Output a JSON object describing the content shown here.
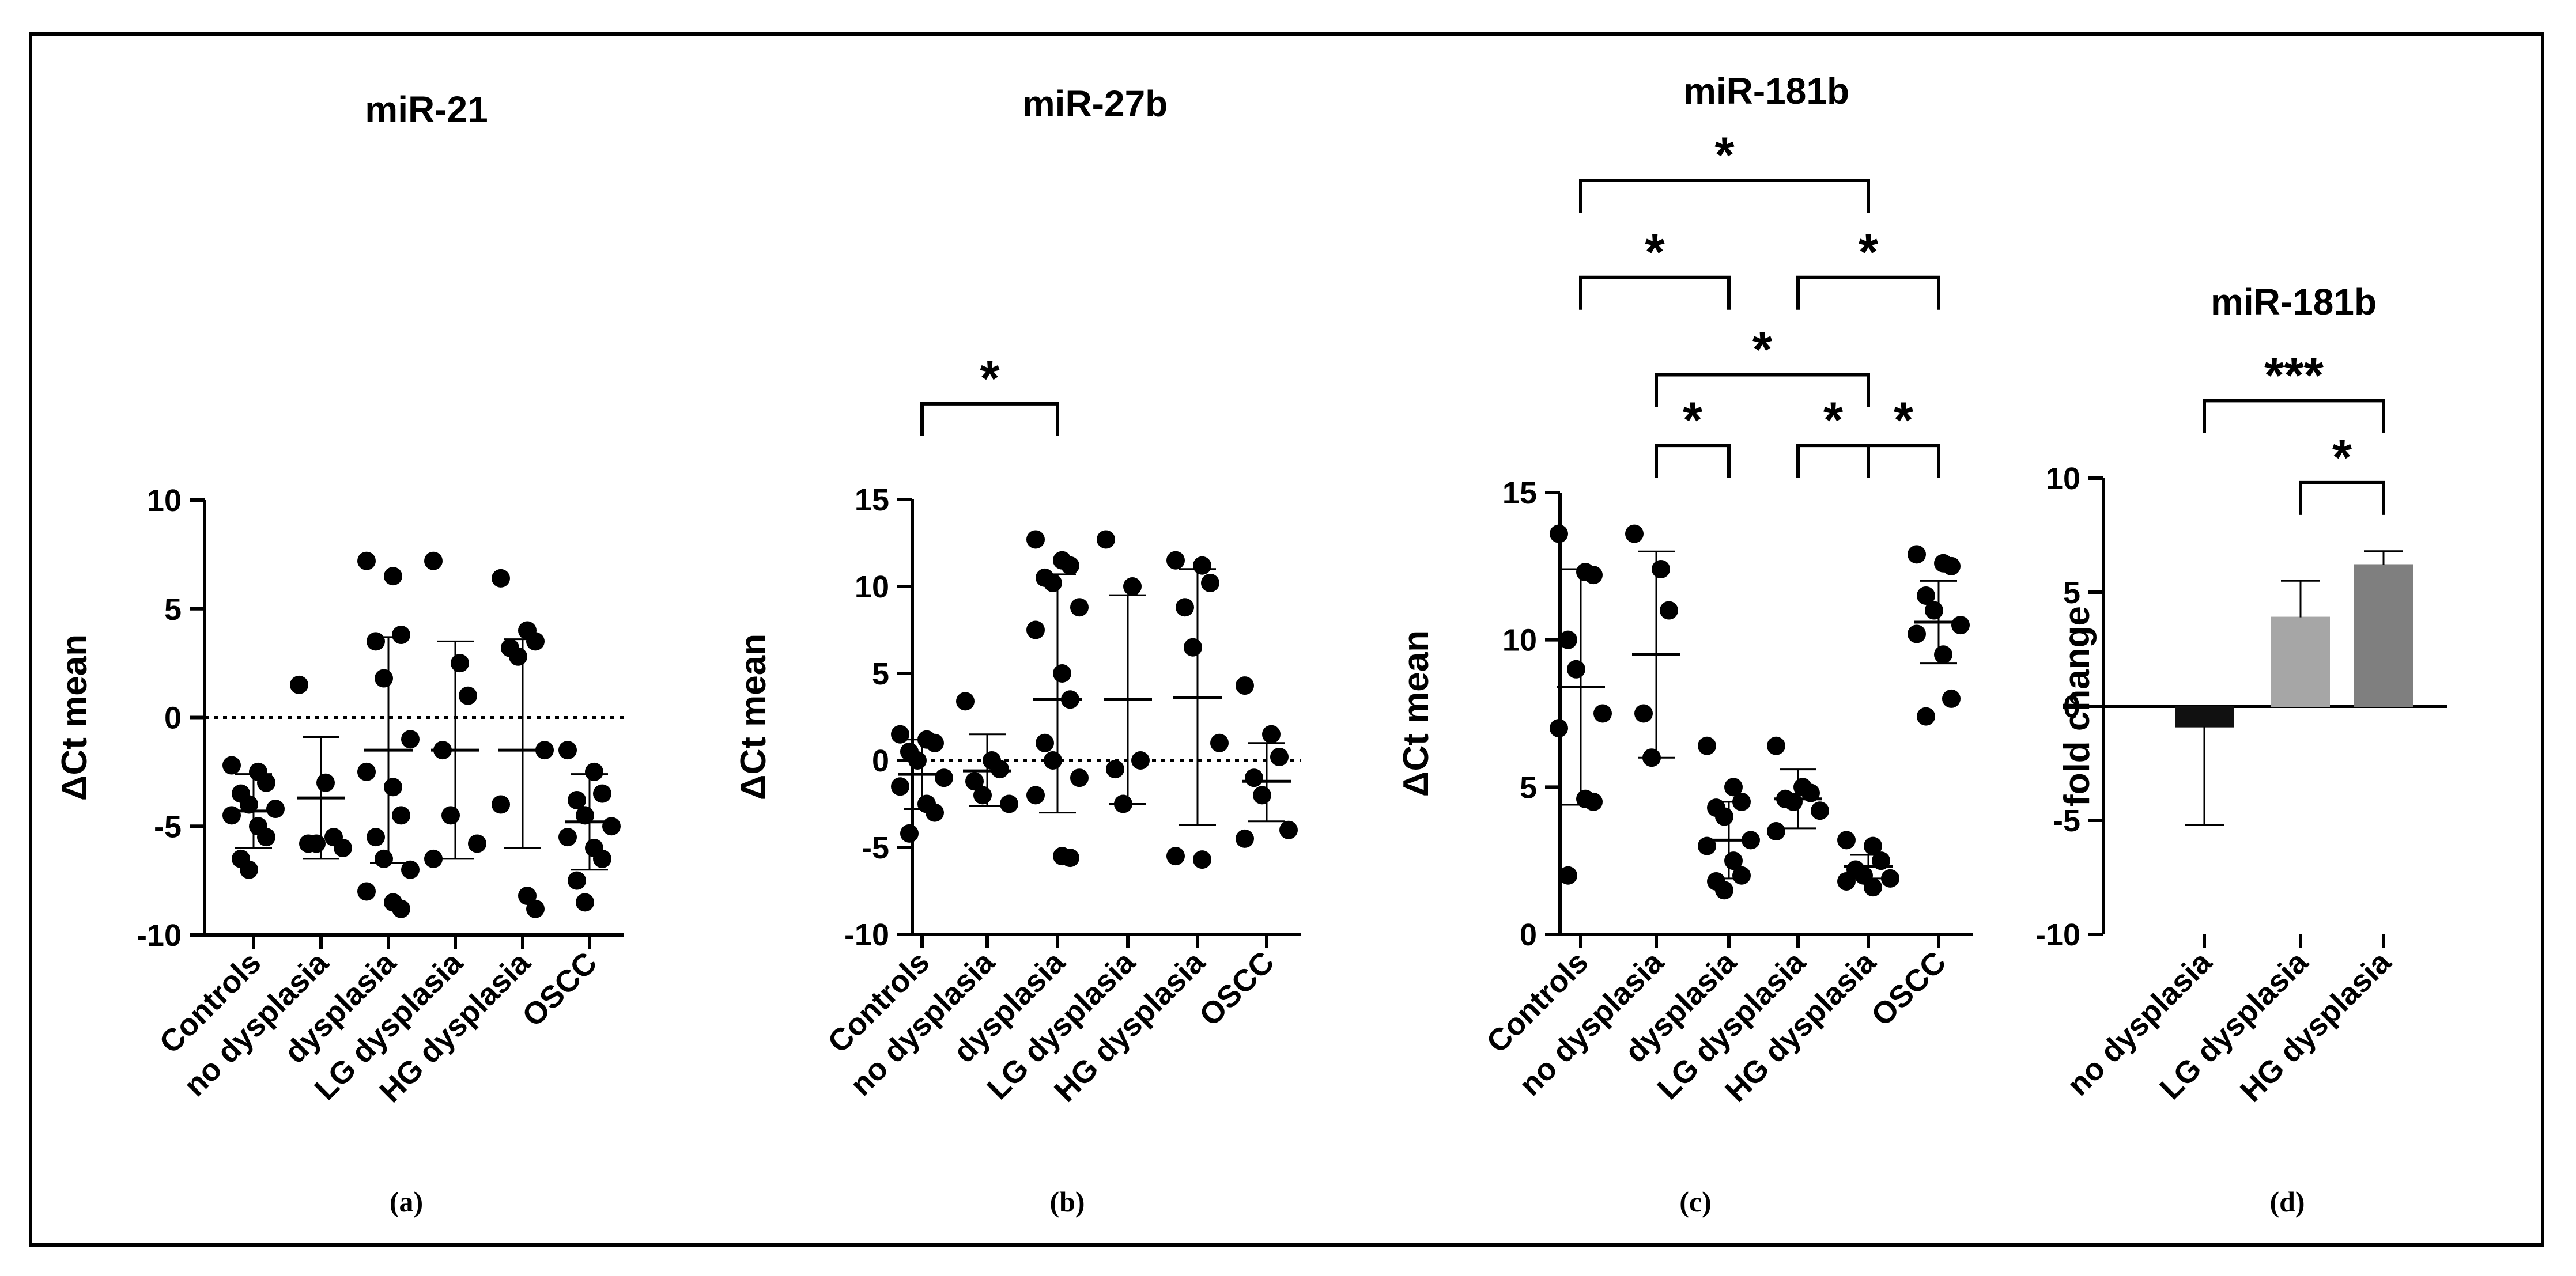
{
  "chart_data": [
    {
      "id": "a",
      "type": "scatter",
      "panel_label": "(a)",
      "title": "miR-21",
      "ylabel": "ΔCt mean",
      "ylim": [
        -10,
        10
      ],
      "yticks": [
        -10,
        -5,
        0,
        5,
        10
      ],
      "reference_line": 0,
      "categories": [
        "Controls",
        "no dysplasia",
        "dysplasia",
        "LG dysplasia",
        "HG dysplasia",
        "OSCC"
      ],
      "points": [
        [
          -2.2,
          -2.5,
          -3.0,
          -3.5,
          -4.0,
          -4.2,
          -4.5,
          -5.0,
          -5.5,
          -6.5,
          -7.0
        ],
        [
          1.5,
          -3.0,
          -5.5,
          -5.8,
          -5.8,
          -6.0
        ],
        [
          7.2,
          6.5,
          3.8,
          3.5,
          1.8,
          -1.0,
          -2.5,
          -3.2,
          -4.5,
          -5.5,
          -6.5,
          -7.0,
          -8.0,
          -8.5,
          -8.8
        ],
        [
          7.2,
          2.5,
          1.0,
          -1.5,
          -4.5,
          -5.8,
          -6.5
        ],
        [
          6.4,
          4.0,
          3.5,
          3.2,
          2.8,
          -1.5,
          -4.0,
          -8.2,
          -8.8
        ],
        [
          -1.5,
          -2.5,
          -3.5,
          -3.8,
          -4.5,
          -5.0,
          -5.5,
          -6.0,
          -6.5,
          -7.5,
          -8.5
        ]
      ],
      "mean": [
        -4.3,
        -3.7,
        -1.5,
        -1.5,
        -1.5,
        -4.8
      ],
      "sd_low": [
        -6.0,
        -6.5,
        -6.7,
        -6.5,
        -6.0,
        -7.0
      ],
      "sd_high": [
        -2.6,
        -0.9,
        3.7,
        3.5,
        3.6,
        -2.6
      ],
      "significance": []
    },
    {
      "id": "b",
      "type": "scatter",
      "panel_label": "(b)",
      "title": "miR-27b",
      "ylabel": "ΔCt mean",
      "ylim": [
        -10,
        15
      ],
      "yticks": [
        -10,
        -5,
        0,
        5,
        10,
        15
      ],
      "reference_line": 0,
      "categories": [
        "Controls",
        "no dysplasia",
        "dysplasia",
        "LG dysplasia",
        "HG dysplasia",
        "OSCC"
      ],
      "points": [
        [
          1.5,
          1.2,
          1.0,
          0.5,
          0.0,
          -1.0,
          -1.5,
          -2.5,
          -3.0,
          -4.2
        ],
        [
          3.4,
          0.0,
          -0.5,
          -1.2,
          -2.0,
          -2.5
        ],
        [
          12.7,
          11.5,
          11.2,
          10.5,
          10.2,
          8.8,
          7.5,
          5.0,
          3.5,
          1.0,
          0.0,
          -1.0,
          -2.0,
          -5.5,
          -5.6
        ],
        [
          12.7,
          10.0,
          0.0,
          -0.5,
          -2.5
        ],
        [
          11.5,
          11.2,
          10.2,
          8.8,
          6.5,
          1.0,
          -5.5,
          -5.7
        ],
        [
          4.3,
          1.5,
          0.2,
          -1.0,
          -2.0,
          -4.0,
          -4.5
        ]
      ],
      "mean": [
        -0.8,
        -0.6,
        3.5,
        3.5,
        3.6,
        -1.2
      ],
      "sd_low": [
        -2.8,
        -2.6,
        -3.0,
        -2.5,
        -3.7,
        -3.5
      ],
      "sd_high": [
        1.2,
        1.5,
        10.7,
        9.5,
        11.0,
        1.0
      ],
      "significance": [
        {
          "from": 0,
          "to": 2,
          "label": "*",
          "y": 20.5
        }
      ]
    },
    {
      "id": "c",
      "type": "scatter",
      "panel_label": "(c)",
      "title": "miR-181b",
      "ylabel": "ΔCt mean",
      "ylim": [
        0,
        15
      ],
      "yticks": [
        0,
        5,
        10,
        15
      ],
      "reference_line": null,
      "categories": [
        "Controls",
        "no dysplasia",
        "dysplasia",
        "LG dysplasia",
        "HG dysplasia",
        "OSCC"
      ],
      "points": [
        [
          13.6,
          12.3,
          12.2,
          10.0,
          9.0,
          7.5,
          7.0,
          4.6,
          4.5,
          2.0
        ],
        [
          13.6,
          12.4,
          11.0,
          7.5,
          6.0
        ],
        [
          6.4,
          5.0,
          4.5,
          4.3,
          4.0,
          3.2,
          3.0,
          2.5,
          2.0,
          1.8,
          1.5
        ],
        [
          6.4,
          5.0,
          4.8,
          4.6,
          4.5,
          4.2,
          3.5
        ],
        [
          3.2,
          3.0,
          2.5,
          2.2,
          2.0,
          1.9,
          1.8,
          1.6
        ],
        [
          12.9,
          12.6,
          12.5,
          11.5,
          11.0,
          10.5,
          10.2,
          9.5,
          8.0,
          7.4
        ]
      ],
      "mean": [
        8.4,
        9.5,
        3.2,
        4.6,
        2.3,
        10.6
      ],
      "sd_low": [
        4.4,
        6.0,
        1.9,
        3.6,
        1.9,
        9.2
      ],
      "sd_high": [
        12.4,
        13.0,
        4.5,
        5.6,
        2.7,
        12.0
      ],
      "significance": [
        {
          "from": 0,
          "to": 4,
          "label": "*",
          "y": 25.6
        },
        {
          "from": 0,
          "to": 2,
          "label": "*",
          "y": 22.3
        },
        {
          "from": 3,
          "to": 5,
          "label": "*",
          "y": 22.3
        },
        {
          "from": 1,
          "to": 4,
          "label": "*",
          "y": 19.0
        },
        {
          "from": 1,
          "to": 2,
          "label": "*",
          "y": 16.6
        },
        {
          "from": 3,
          "to": 4,
          "label": "*",
          "y": 16.6
        },
        {
          "from": 4,
          "to": 5,
          "label": "*",
          "y": 16.6
        }
      ]
    },
    {
      "id": "d",
      "type": "bar",
      "panel_label": "(d)",
      "title": "miR-181b",
      "ylabel": "fold change",
      "ylim": [
        -10,
        10
      ],
      "yticks": [
        -10,
        -5,
        0,
        5,
        10
      ],
      "categories": [
        "no dysplasia",
        "LG dysplasia",
        "HG dysplasia"
      ],
      "values": [
        -0.9,
        3.9,
        6.2
      ],
      "err_low": [
        -5.2,
        null,
        null
      ],
      "err_high": [
        null,
        5.5,
        6.8
      ],
      "bar_colors": [
        "#111111",
        "#a6a6a6",
        "#7f7f7f"
      ],
      "significance": [
        {
          "from": 0,
          "to": 2,
          "label": "***",
          "y": 13.4
        },
        {
          "from": 1,
          "to": 2,
          "label": "*",
          "y": 9.8
        }
      ]
    }
  ]
}
